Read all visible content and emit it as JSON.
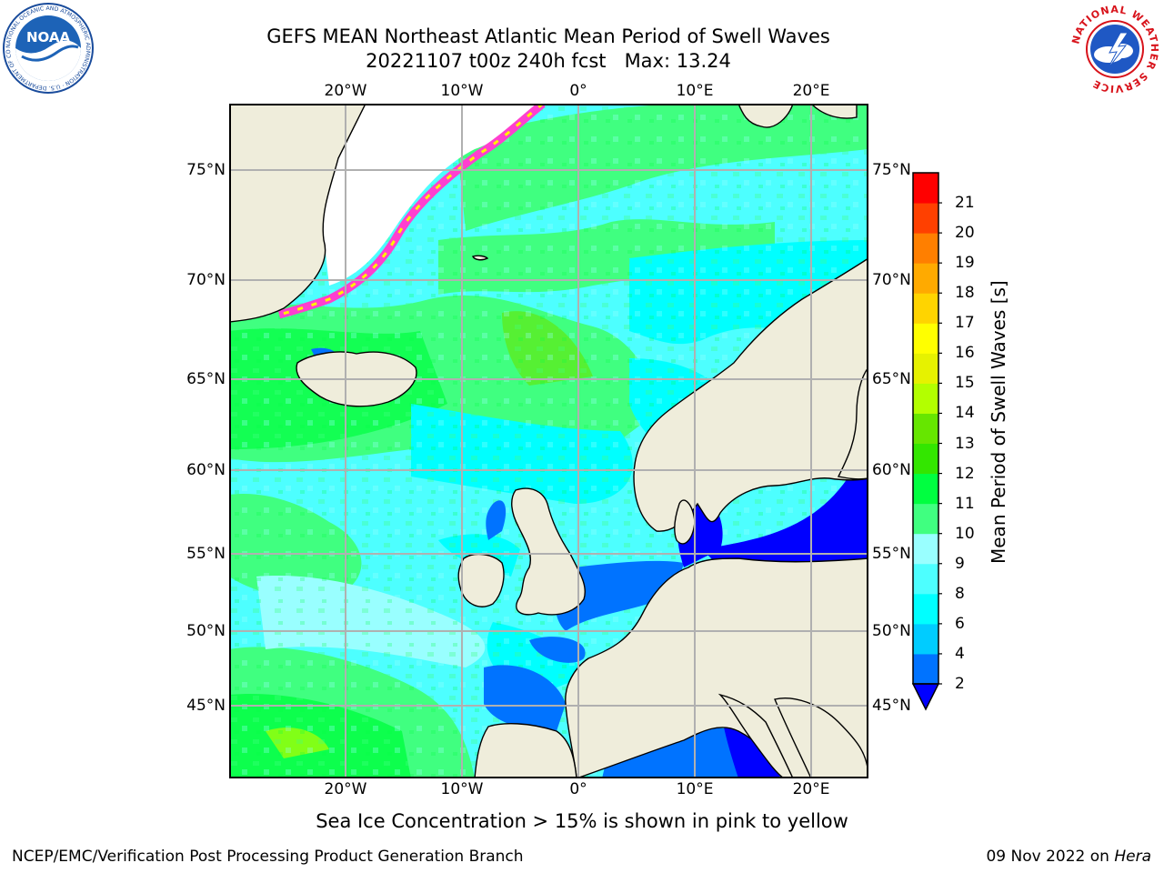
{
  "header": {
    "title_line1": "GEFS MEAN Northeast Atlantic Mean Period of Swell Waves",
    "title_line2": "20221107 t00z 240h fcst   Max: 13.24"
  },
  "logos": {
    "noaa": {
      "text": "NOAA",
      "ring_text": "NATIONAL OCEANIC AND ATMOSPHERIC ADMINISTRATION · U.S. DEPARTMENT OF COMMERCE",
      "color": "#1a4c9c"
    },
    "nws": {
      "ring_text": "NATIONAL WEATHER SERVICE",
      "color": "#d8131b"
    }
  },
  "map": {
    "lon_ticks": [
      "20°W",
      "10°W",
      "0°",
      "10°E",
      "20°E"
    ],
    "lat_ticks": [
      "75°N",
      "70°N",
      "65°N",
      "60°N",
      "55°N",
      "50°N",
      "45°N"
    ],
    "colors": {
      "land": "#efeddb",
      "frame": "#000000",
      "grid": "#b0b0b0",
      "ice_pink": "#ff3fcf",
      "ice_yellow": "#fff200",
      "unmasked_white": "#ffffff"
    }
  },
  "chart_data": {
    "type": "heatmap",
    "title": "GEFS MEAN Northeast Atlantic Mean Period of Swell Waves",
    "subtitle": "20221107 t00z 240h fcst   Max: 13.24",
    "max_value": 13.24,
    "colorbar": {
      "label": "Mean Period of Swell Waves [s]",
      "ticks": [
        "2",
        "4",
        "6",
        "8",
        "9",
        "10",
        "11",
        "12",
        "13",
        "14",
        "15",
        "16",
        "17",
        "18",
        "19",
        "20",
        "21"
      ],
      "bin_colors": [
        "#0073ff",
        "#00ccff",
        "#00ffff",
        "#4dffff",
        "#99ffff",
        "#40ff80",
        "#00ff40",
        "#33e600",
        "#66e600",
        "#b3ff00",
        "#e6f200",
        "#ffff00",
        "#ffd400",
        "#ffaa00",
        "#ff7f00",
        "#ff4000",
        "#ff0000"
      ],
      "extend": "min",
      "under_color": "#0000ff"
    },
    "annotation": "Sea Ice Concentration > 15% is shown in pink to yellow"
  },
  "footer": {
    "left": "NCEP/EMC/Verification Post Processing Product Generation Branch",
    "right_date": "09 Nov 2022 on ",
    "right_host": "Hera"
  }
}
